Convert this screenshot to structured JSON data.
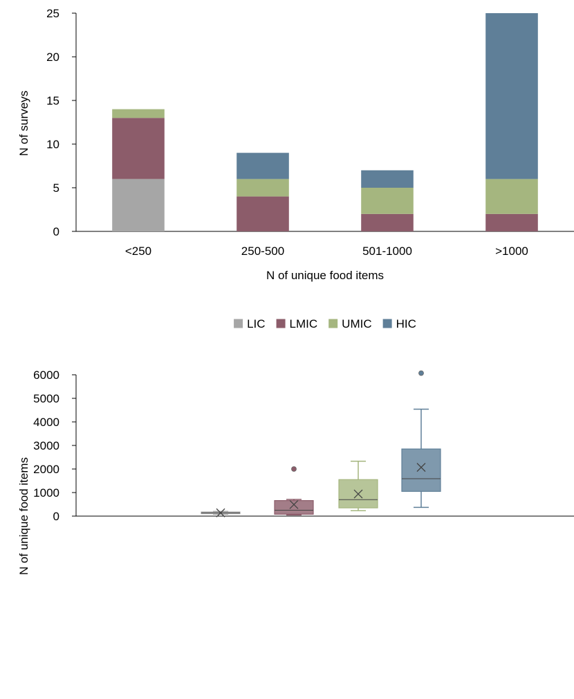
{
  "colors": {
    "LIC": "#a6a6a6",
    "LMIC": "#8c5c6a",
    "UMIC": "#a5b67f",
    "HIC": "#5f7f98",
    "axis": "#000000"
  },
  "legend": {
    "placement": "between charts, centered",
    "entries": [
      "LIC",
      "LMIC",
      "UMIC",
      "HIC"
    ]
  },
  "chart_data": [
    {
      "type": "bar",
      "stacked": true,
      "title": "",
      "xlabel": "N of unique food items",
      "ylabel": "N of surveys",
      "categories": [
        "<250",
        "250-500",
        "501-1000",
        ">1000"
      ],
      "ylim": [
        0,
        25
      ],
      "yticks": [
        0,
        5,
        10,
        15,
        20,
        25
      ],
      "grid": false,
      "series": [
        {
          "name": "LIC",
          "values": [
            6,
            0,
            0,
            0
          ]
        },
        {
          "name": "LMIC",
          "values": [
            7,
            4,
            2,
            2
          ]
        },
        {
          "name": "UMIC",
          "values": [
            1,
            2,
            3,
            4
          ]
        },
        {
          "name": "HIC",
          "values": [
            0,
            3,
            2,
            19
          ]
        }
      ]
    },
    {
      "type": "box",
      "title": "",
      "xlabel": "",
      "ylabel": "N of unique food items",
      "ylim": [
        0,
        6000
      ],
      "yticks": [
        0,
        1000,
        2000,
        3000,
        4000,
        5000,
        6000
      ],
      "grid": false,
      "boxes": [
        {
          "name": "LIC",
          "min": 80,
          "q1": 100,
          "median": 140,
          "q3": 175,
          "max": 200,
          "mean": 140,
          "outliers": []
        },
        {
          "name": "LMIC",
          "min": 50,
          "q1": 80,
          "median": 250,
          "q3": 660,
          "max": 710,
          "mean": 490,
          "outliers": [
            2000
          ]
        },
        {
          "name": "UMIC",
          "min": 230,
          "q1": 350,
          "median": 700,
          "q3": 1550,
          "max": 2330,
          "mean": 940,
          "outliers": []
        },
        {
          "name": "HIC",
          "min": 370,
          "q1": 1050,
          "median": 1590,
          "q3": 2850,
          "max": 4540,
          "mean": 2070,
          "outliers": [
            6070
          ]
        }
      ]
    }
  ]
}
